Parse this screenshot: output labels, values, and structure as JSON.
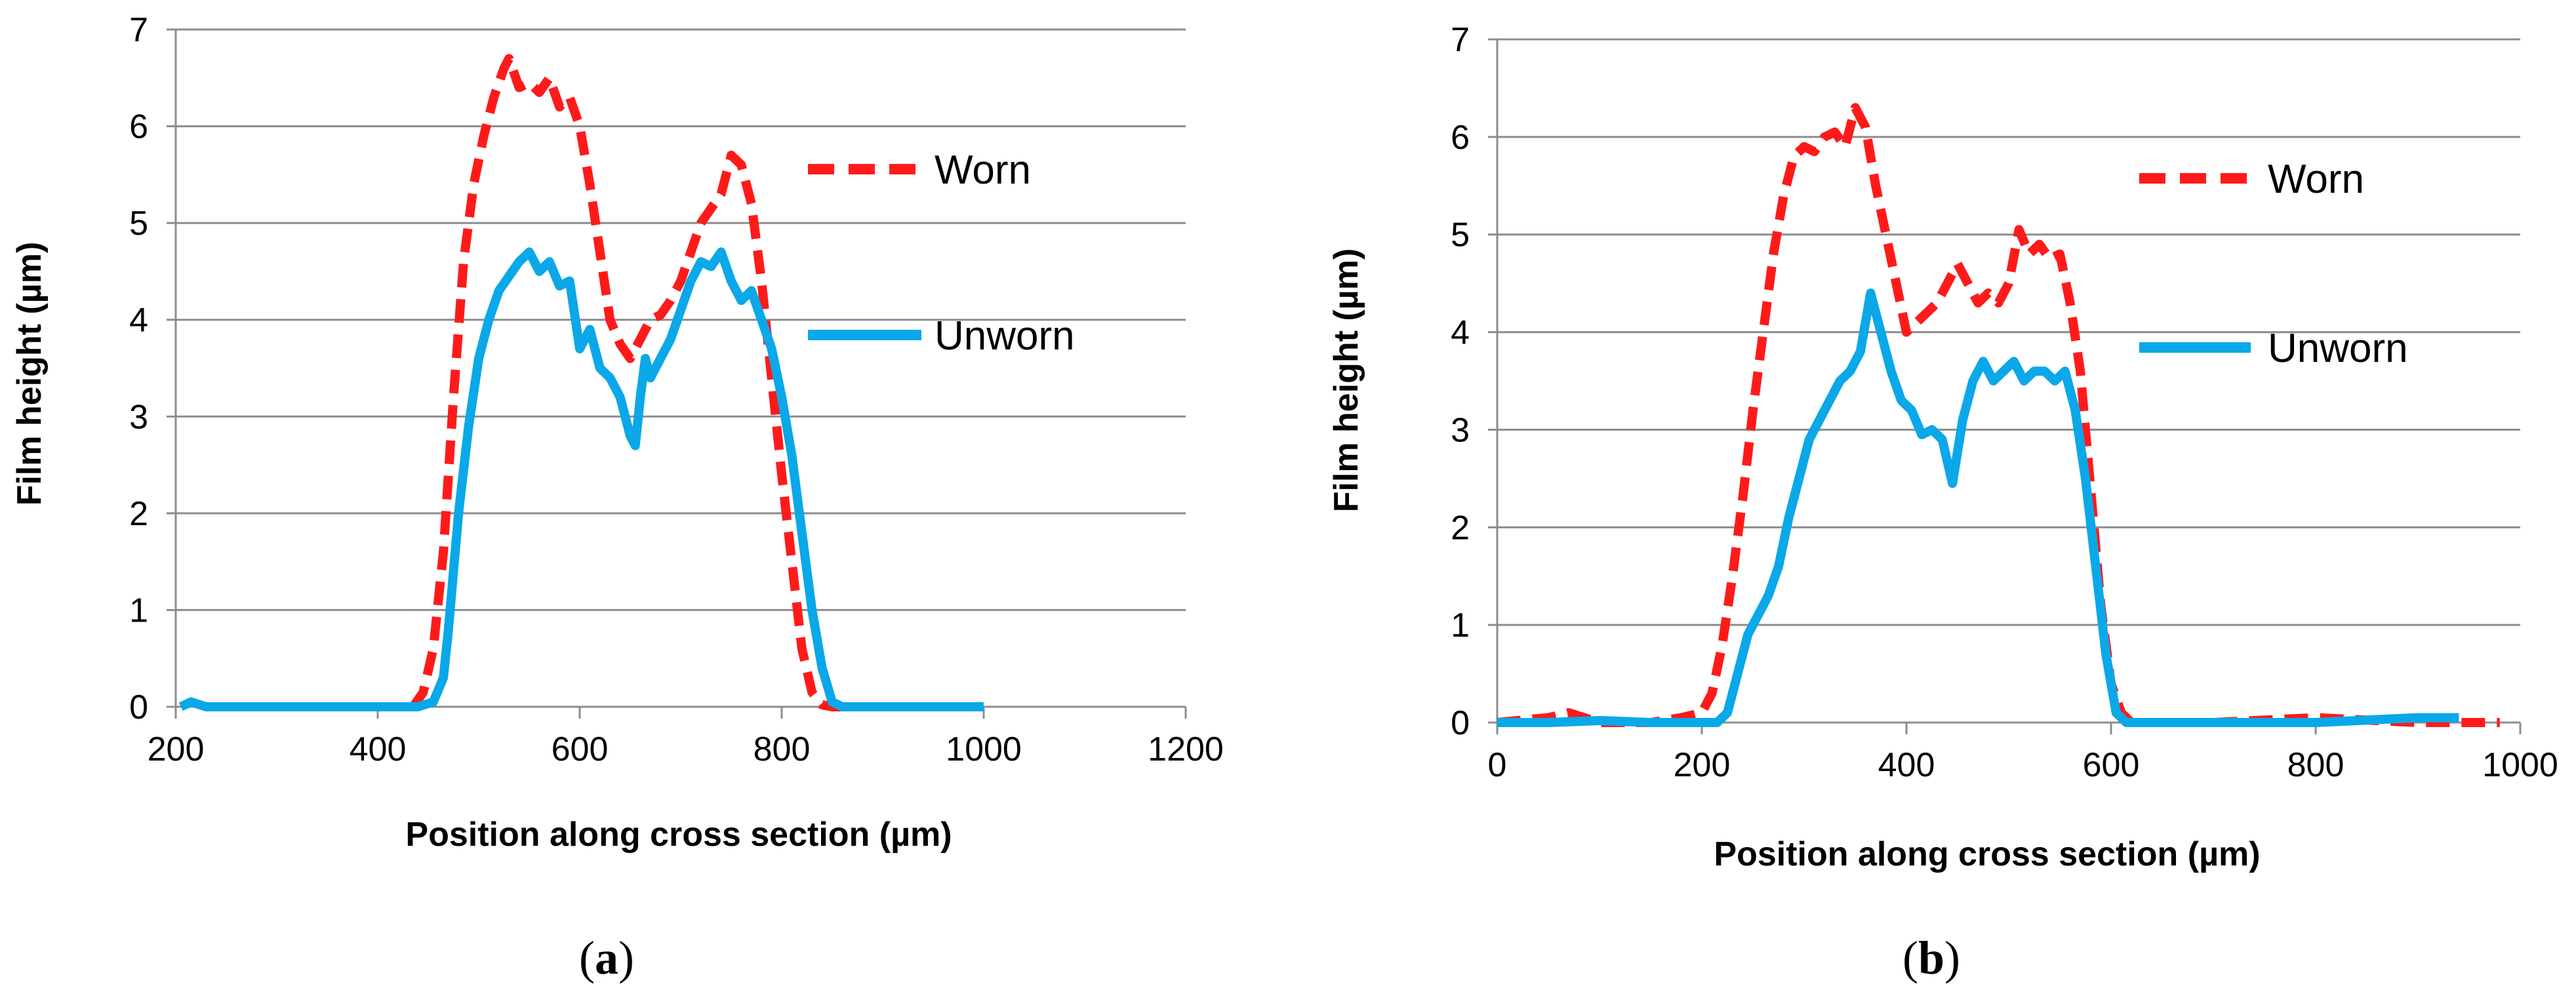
{
  "chart_data": [
    {
      "type": "line",
      "panel": "a",
      "caption": {
        "open": "(",
        "letter": "a",
        "close": ")"
      },
      "title": "",
      "xlabel": "Position along cross section (µm)",
      "ylabel": "Film height (µm)",
      "xlim": [
        200,
        1200
      ],
      "ylim": [
        0,
        7
      ],
      "xticks": [
        "200",
        "400",
        "600",
        "800",
        "1000",
        "1200"
      ],
      "yticks": [
        "0",
        "1",
        "2",
        "3",
        "4",
        "5",
        "6",
        "7"
      ],
      "grid": true,
      "legend": "right",
      "series": [
        {
          "name": "Worn",
          "color": "#ff1a1a",
          "style": "dashed",
          "x": [
            435,
            445,
            455,
            465,
            475,
            485,
            495,
            505,
            515,
            525,
            530,
            540,
            550,
            560,
            570,
            580,
            590,
            600,
            610,
            620,
            630,
            640,
            650,
            660,
            670,
            680,
            690,
            700,
            710,
            720,
            730,
            740,
            750,
            760,
            770,
            780,
            790,
            800,
            810,
            820,
            830,
            840,
            850,
            860,
            900,
            950,
            990
          ],
          "y": [
            0.0,
            0.15,
            0.6,
            1.6,
            3.2,
            4.6,
            5.4,
            5.9,
            6.3,
            6.6,
            6.7,
            6.4,
            6.45,
            6.35,
            6.5,
            6.2,
            6.3,
            6.0,
            5.4,
            4.7,
            4.0,
            3.75,
            3.6,
            3.8,
            4.0,
            4.05,
            4.2,
            4.4,
            4.7,
            5.0,
            5.15,
            5.3,
            5.7,
            5.6,
            5.2,
            4.4,
            3.4,
            2.4,
            1.5,
            0.6,
            0.15,
            0.02,
            0.0,
            0.0,
            0.0,
            0.0,
            0.0
          ]
        },
        {
          "name": "Unworn",
          "color": "#0aa8e8",
          "style": "solid",
          "x": [
            205,
            215,
            230,
            260,
            300,
            350,
            400,
            440,
            455,
            465,
            470,
            475,
            480,
            490,
            500,
            510,
            520,
            530,
            540,
            550,
            560,
            570,
            580,
            590,
            600,
            610,
            620,
            630,
            640,
            650,
            655,
            660,
            665,
            670,
            680,
            690,
            700,
            710,
            720,
            730,
            740,
            750,
            760,
            770,
            780,
            790,
            800,
            810,
            820,
            830,
            840,
            850,
            860,
            900,
            950,
            1000
          ],
          "y": [
            0.0,
            0.05,
            0.0,
            0.0,
            0.0,
            0.0,
            0.0,
            0.0,
            0.05,
            0.3,
            0.8,
            1.4,
            2.0,
            2.9,
            3.6,
            4.0,
            4.3,
            4.45,
            4.6,
            4.7,
            4.5,
            4.6,
            4.35,
            4.4,
            3.7,
            3.9,
            3.5,
            3.4,
            3.2,
            2.8,
            2.7,
            3.2,
            3.6,
            3.4,
            3.6,
            3.8,
            4.1,
            4.4,
            4.6,
            4.55,
            4.7,
            4.4,
            4.2,
            4.3,
            4.0,
            3.7,
            3.2,
            2.6,
            1.8,
            1.0,
            0.4,
            0.05,
            0.0,
            0.0,
            0.0,
            0.0
          ]
        }
      ]
    },
    {
      "type": "line",
      "panel": "b",
      "caption": {
        "open": "(",
        "letter": "b",
        "close": ")"
      },
      "title": "",
      "xlabel": "Position along cross section (µm)",
      "ylabel": "Film height (µm)",
      "xlim": [
        0,
        1000
      ],
      "ylim": [
        0,
        7
      ],
      "xticks": [
        "0",
        "200",
        "400",
        "600",
        "800",
        "1000"
      ],
      "yticks": [
        "0",
        "1",
        "2",
        "3",
        "4",
        "5",
        "6",
        "7"
      ],
      "grid": true,
      "legend": "right",
      "series": [
        {
          "name": "Worn",
          "color": "#ff1a1a",
          "style": "dashed",
          "x": [
            0,
            50,
            70,
            100,
            150,
            180,
            200,
            210,
            220,
            230,
            240,
            250,
            260,
            270,
            280,
            290,
            300,
            310,
            320,
            330,
            340,
            350,
            360,
            370,
            380,
            390,
            400,
            410,
            420,
            430,
            440,
            450,
            460,
            470,
            480,
            490,
            500,
            510,
            520,
            530,
            540,
            550,
            560,
            570,
            580,
            590,
            600,
            610,
            620,
            700,
            800,
            900,
            980
          ],
          "y": [
            0.0,
            0.05,
            0.1,
            0.0,
            0.0,
            0.05,
            0.1,
            0.3,
            0.8,
            1.5,
            2.3,
            3.2,
            4.0,
            4.8,
            5.4,
            5.8,
            5.9,
            5.85,
            6.0,
            6.05,
            5.9,
            6.3,
            6.1,
            5.5,
            5.0,
            4.5,
            4.0,
            4.1,
            4.2,
            4.3,
            4.5,
            4.7,
            4.5,
            4.3,
            4.4,
            4.3,
            4.5,
            5.05,
            4.8,
            4.9,
            4.75,
            4.8,
            4.3,
            3.6,
            2.4,
            1.2,
            0.4,
            0.1,
            0.0,
            0.0,
            0.05,
            0.0,
            0.0
          ]
        },
        {
          "name": "Unworn",
          "color": "#0aa8e8",
          "style": "solid",
          "x": [
            0,
            50,
            100,
            150,
            200,
            215,
            225,
            235,
            245,
            255,
            265,
            275,
            285,
            295,
            305,
            315,
            325,
            335,
            345,
            355,
            365,
            375,
            385,
            395,
            405,
            415,
            425,
            435,
            445,
            455,
            465,
            475,
            485,
            495,
            505,
            515,
            525,
            535,
            545,
            555,
            565,
            575,
            585,
            595,
            605,
            615,
            700,
            800,
            900,
            940
          ],
          "y": [
            0.0,
            0.0,
            0.02,
            0.0,
            0.0,
            0.0,
            0.1,
            0.5,
            0.9,
            1.1,
            1.3,
            1.6,
            2.1,
            2.5,
            2.9,
            3.1,
            3.3,
            3.5,
            3.6,
            3.8,
            4.4,
            4.0,
            3.6,
            3.3,
            3.2,
            2.95,
            3.0,
            2.9,
            2.45,
            3.1,
            3.5,
            3.7,
            3.5,
            3.6,
            3.7,
            3.5,
            3.6,
            3.6,
            3.5,
            3.6,
            3.2,
            2.5,
            1.6,
            0.7,
            0.1,
            0.0,
            0.0,
            0.0,
            0.05,
            0.05
          ]
        }
      ]
    }
  ]
}
